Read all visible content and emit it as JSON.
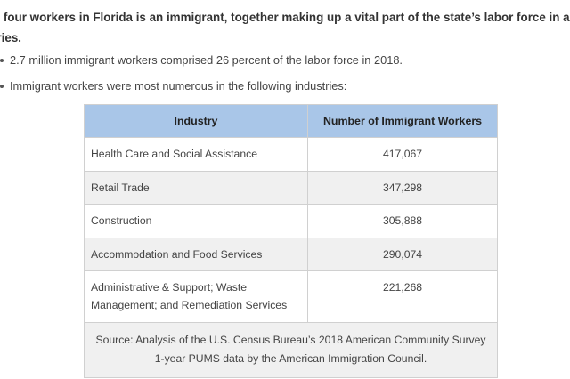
{
  "intro": {
    "line1": "n four workers in Florida is an immigrant, together making up a vital part of the state’s labor force in a ran",
    "line2": "tries."
  },
  "bullets": [
    "2.7 million immigrant workers comprised 26 percent of the labor force in 2018.",
    "Immigrant workers were most numerous in the following industries:"
  ],
  "table": {
    "headers": [
      "Industry",
      "Number of Immigrant Workers"
    ],
    "rows": [
      {
        "industry": "Health Care and Social Assistance",
        "workers": "417,067"
      },
      {
        "industry": "Retail Trade",
        "workers": "347,298"
      },
      {
        "industry": "Construction",
        "workers": "305,888"
      },
      {
        "industry": "Accommodation and Food Services",
        "workers": "290,074"
      },
      {
        "industry_line1": "Administrative & Support; Waste",
        "industry_line2": "Management; and Remediation Services",
        "workers": "221,268"
      }
    ],
    "source_line1": "Source: Analysis of the U.S. Census Bureau’s 2018 American Community Survey",
    "source_line2": "1-year PUMS data by the American Immigration Council."
  }
}
